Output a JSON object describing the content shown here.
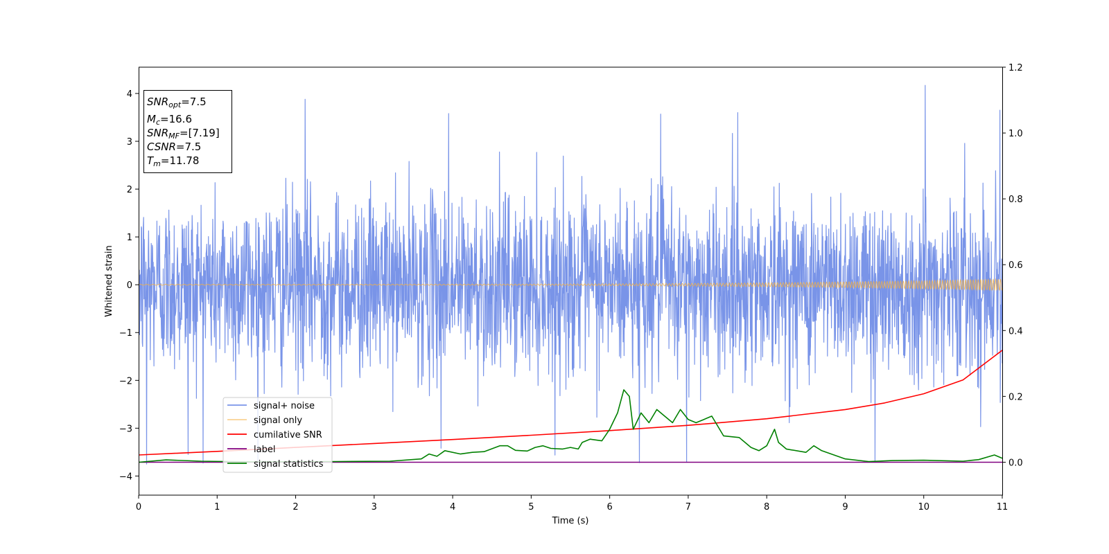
{
  "chart_data": {
    "type": "line",
    "xlabel": "Time (s)",
    "ylabel": "Whitened strain",
    "xlim": [
      0,
      11
    ],
    "ylim_left": [
      -4.4,
      4.55
    ],
    "ylim_right": [
      -0.1,
      1.2
    ],
    "x_ticks": [
      0,
      1,
      2,
      3,
      4,
      5,
      6,
      7,
      8,
      9,
      10,
      11
    ],
    "x_tick_labels": [
      "0",
      "1",
      "2",
      "3",
      "4",
      "5",
      "6",
      "7",
      "8",
      "9",
      "10",
      "11"
    ],
    "y_left_ticks": [
      -4,
      -3,
      -2,
      -1,
      0,
      1,
      2,
      3,
      4
    ],
    "y_left_tick_labels": [
      "−4",
      "−3",
      "−2",
      "−1",
      "0",
      "1",
      "2",
      "3",
      "4"
    ],
    "y_right_ticks": [
      0.0,
      0.2,
      0.4,
      0.6,
      0.8,
      1.0,
      1.2
    ],
    "y_right_tick_labels": [
      "0.0",
      "0.2",
      "0.4",
      "0.6",
      "0.8",
      "1.0",
      "1.2"
    ],
    "grid": false,
    "legend_position": "lower-left",
    "annotation_box": {
      "position": "top-left",
      "lines": [
        {
          "main": "SNR",
          "sub": "opt",
          "value": "=7.5"
        },
        {
          "main": "M",
          "sub": "c",
          "value": "=16.6"
        },
        {
          "main": "SNR",
          "sub": "MF",
          "value": "=[7.19]"
        },
        {
          "main": "CSNR",
          "sub": "",
          "value": "=7.5"
        },
        {
          "main": "T",
          "sub": "m",
          "value": "=11.78"
        }
      ]
    },
    "series": [
      {
        "name": "signal+ noise",
        "axis": "left",
        "color": "#7994e8",
        "style": "noise",
        "mean": 0,
        "typical_peak_amplitude": 2.4,
        "peaks": [
          {
            "x": 2.12,
            "y": 3.88
          },
          {
            "x": 3.95,
            "y": 3.58
          },
          {
            "x": 6.65,
            "y": 3.57
          },
          {
            "x": 7.63,
            "y": 3.6
          },
          {
            "x": 10.02,
            "y": 4.17
          },
          {
            "x": 10.97,
            "y": 3.65
          },
          {
            "x": 0.1,
            "y": -3.75
          },
          {
            "x": 0.63,
            "y": -3.55
          },
          {
            "x": 3.85,
            "y": -3.42
          },
          {
            "x": 6.38,
            "y": -3.72
          },
          {
            "x": 6.98,
            "y": -3.7
          },
          {
            "x": 9.38,
            "y": -3.68
          }
        ]
      },
      {
        "name": "signal only",
        "axis": "left",
        "color": "#f5b042",
        "style": "chirp",
        "start_amplitude": 0.01,
        "end_amplitude": 0.12
      },
      {
        "name": "cumilative SNR",
        "axis": "right",
        "color": "#ff0000",
        "x": [
          0,
          1,
          2,
          3,
          4,
          5,
          6,
          7,
          8,
          9,
          9.5,
          10,
          10.5,
          11
        ],
        "y": [
          0.022,
          0.033,
          0.045,
          0.057,
          0.069,
          0.082,
          0.096,
          0.112,
          0.132,
          0.16,
          0.18,
          0.208,
          0.25,
          0.34
        ]
      },
      {
        "name": "label",
        "axis": "right",
        "color": "#800080",
        "x": [
          0,
          11
        ],
        "y": [
          0.0,
          0.0
        ]
      },
      {
        "name": "signal statistics",
        "axis": "right",
        "color": "#008000",
        "x": [
          0,
          0.35,
          0.8,
          1.5,
          2.5,
          3.2,
          3.6,
          3.7,
          3.8,
          3.9,
          4.1,
          4.25,
          4.4,
          4.6,
          4.7,
          4.8,
          4.95,
          5.05,
          5.15,
          5.25,
          5.4,
          5.5,
          5.6,
          5.65,
          5.75,
          5.9,
          6.0,
          6.1,
          6.18,
          6.25,
          6.3,
          6.4,
          6.5,
          6.6,
          6.7,
          6.8,
          6.9,
          7.0,
          7.1,
          7.2,
          7.3,
          7.45,
          7.65,
          7.8,
          7.9,
          8.0,
          8.1,
          8.15,
          8.25,
          8.5,
          8.6,
          8.7,
          9.0,
          9.3,
          9.6,
          10.0,
          10.5,
          10.7,
          10.9,
          11.0
        ],
        "y": [
          0.0,
          0.007,
          0.003,
          0.001,
          0.002,
          0.003,
          0.01,
          0.025,
          0.018,
          0.035,
          0.025,
          0.03,
          0.032,
          0.05,
          0.05,
          0.036,
          0.034,
          0.045,
          0.05,
          0.042,
          0.04,
          0.045,
          0.04,
          0.06,
          0.07,
          0.065,
          0.1,
          0.15,
          0.22,
          0.2,
          0.1,
          0.15,
          0.12,
          0.16,
          0.14,
          0.12,
          0.16,
          0.13,
          0.12,
          0.13,
          0.14,
          0.08,
          0.075,
          0.045,
          0.035,
          0.05,
          0.1,
          0.06,
          0.04,
          0.03,
          0.05,
          0.035,
          0.01,
          0.002,
          0.005,
          0.006,
          0.003,
          0.008,
          0.022,
          0.012
        ]
      }
    ]
  }
}
